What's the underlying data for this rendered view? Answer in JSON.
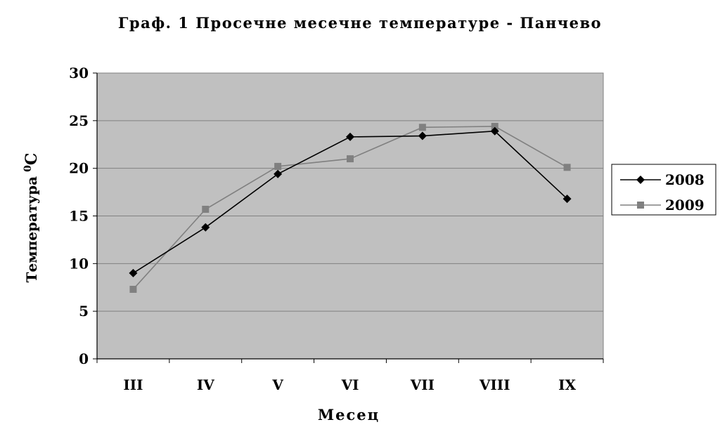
{
  "chart_data": {
    "type": "line",
    "title": "Граф. 1 Просечне месечне температуре - Панчево",
    "xlabel": "Месец",
    "ylabel": "Температура",
    "ylabel_unit_sup": "0",
    "ylabel_unit": "C",
    "categories": [
      "III",
      "IV",
      "V",
      "VI",
      "VII",
      "VIII",
      "IX"
    ],
    "ylim": [
      0,
      30
    ],
    "yticks": [
      "0",
      "5",
      "10",
      "15",
      "20",
      "25",
      "30"
    ],
    "grid": true,
    "legend_position": "right",
    "plot_background": "#c0c0c0",
    "series": [
      {
        "name": "2008",
        "color": "#000000",
        "marker": "diamond",
        "values": [
          9.0,
          13.8,
          19.4,
          23.3,
          23.4,
          23.9,
          16.8
        ]
      },
      {
        "name": "2009",
        "color": "#808080",
        "marker": "square",
        "values": [
          7.3,
          15.7,
          20.2,
          21.0,
          24.3,
          24.4,
          20.1
        ]
      }
    ]
  }
}
